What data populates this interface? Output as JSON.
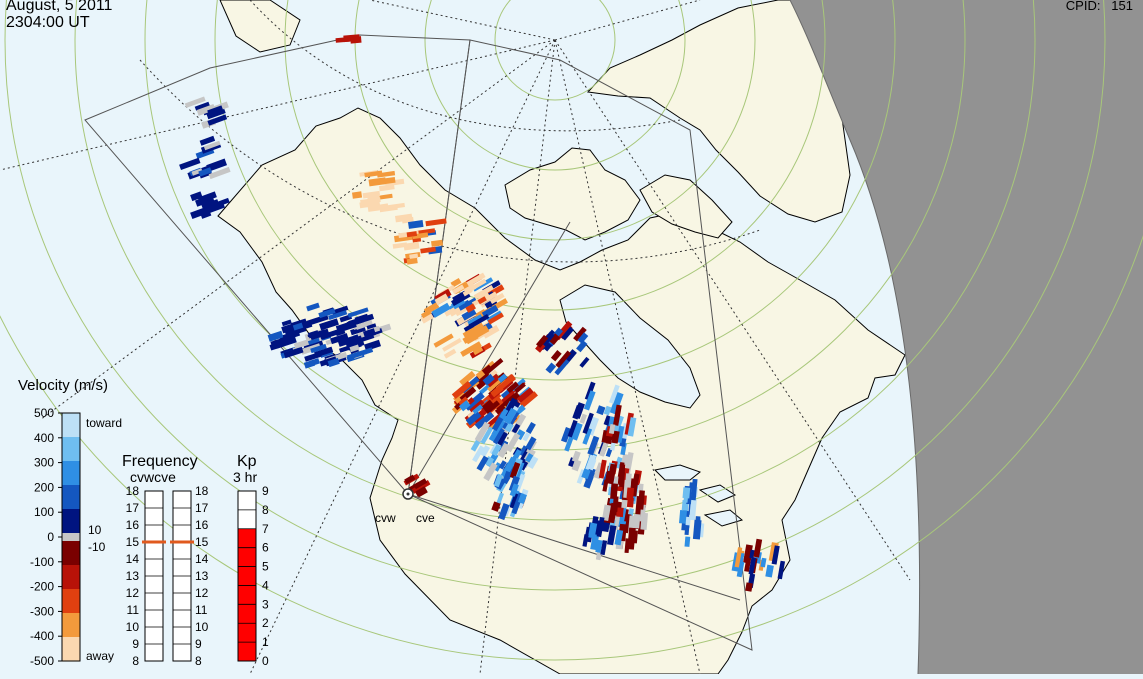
{
  "header": {
    "date": "August, 5 2011",
    "time": "2304:00 UT",
    "cpid_label": "CPID:",
    "cpid_value": "151"
  },
  "colors": {
    "ocean": "#e9f5fb",
    "land": "#f8f6e4",
    "night": "#929292",
    "grid_latitude": "#a8c77a",
    "ground_scatter": "#c6c6c6",
    "frequency_marker": "#e05a1e",
    "kp_fill": "#ff0000"
  },
  "velocity_scale": {
    "title": "Velocity (m/s)",
    "ticks": [
      "500",
      "400",
      "300",
      "200",
      "100",
      "0",
      "-100",
      "-200",
      "-300",
      "-400",
      "-500"
    ],
    "toward_label": "toward",
    "away_label": "away",
    "gs_upper": "10",
    "gs_lower": "-10",
    "palette": [
      "#bde0f6",
      "#6fbef0",
      "#2f8fe4",
      "#1457c0",
      "#001480",
      "#7a0000",
      "#b81208",
      "#e04010",
      "#f39a3c",
      "#fbd8b0"
    ]
  },
  "frequency_scale": {
    "title": "Frequency",
    "radars": "cvwcve",
    "ticks": [
      "18",
      "17",
      "16",
      "15",
      "14",
      "13",
      "12",
      "11",
      "10",
      "9",
      "8"
    ],
    "left_value": 15,
    "right_value": 15
  },
  "kp_scale": {
    "title": "Kp",
    "subtitle": "3 hr",
    "ticks": [
      "9",
      "8",
      "7",
      "6",
      "5",
      "4",
      "3",
      "2",
      "1",
      "0"
    ],
    "value": 7
  },
  "radars": [
    {
      "name": "cvw"
    },
    {
      "name": "cve"
    }
  ]
}
